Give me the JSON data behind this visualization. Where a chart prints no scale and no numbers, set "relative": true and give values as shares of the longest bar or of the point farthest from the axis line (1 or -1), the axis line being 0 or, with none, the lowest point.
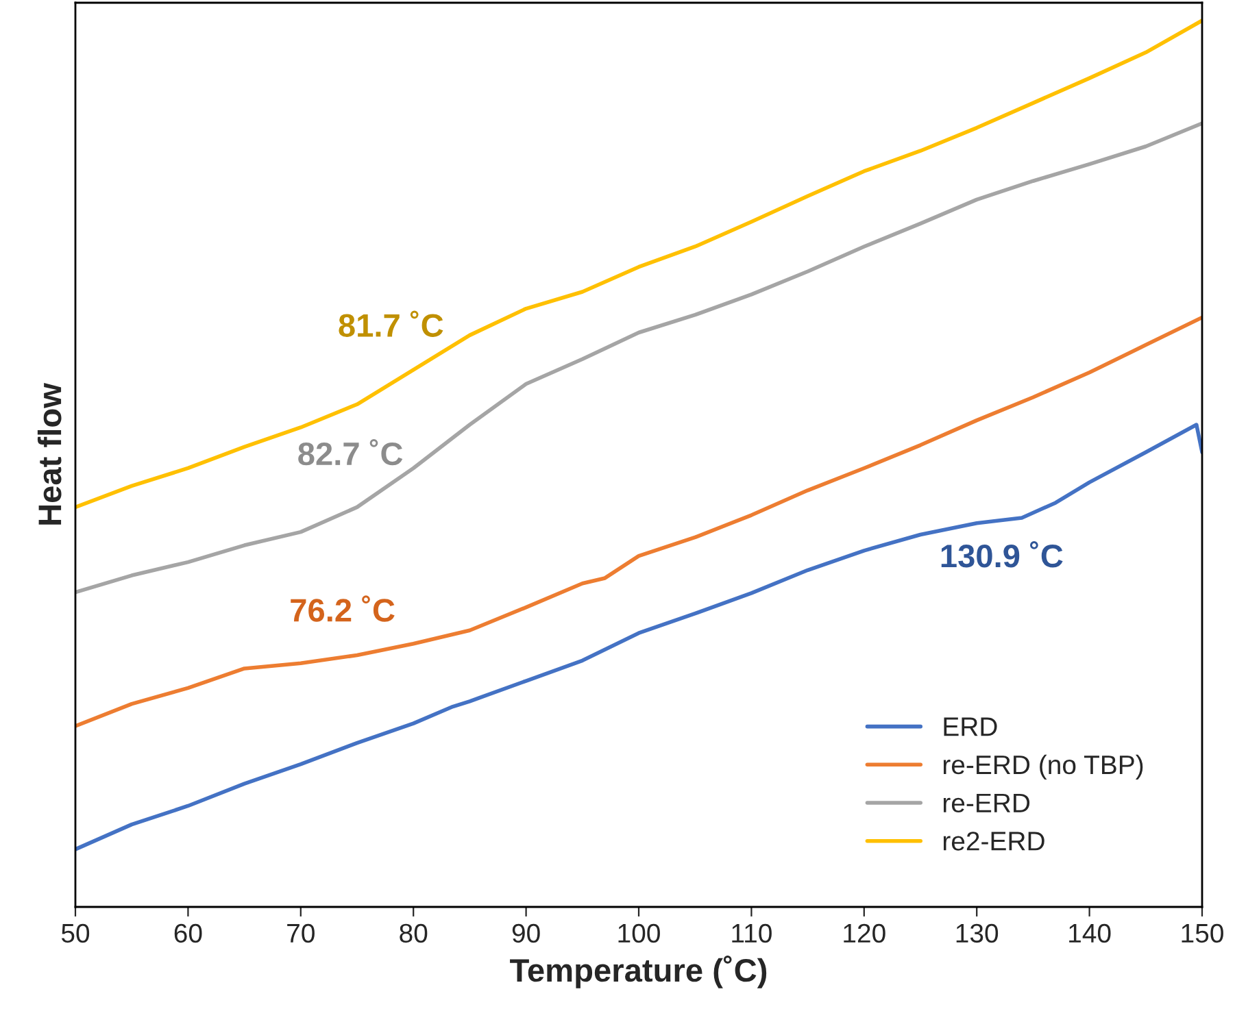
{
  "chart_data": {
    "type": "line",
    "relative": true,
    "xlabel": "Temperature (˚C)",
    "ylabel": "Heat flow",
    "xlim": [
      50,
      150
    ],
    "xticks": [
      50,
      60,
      70,
      80,
      90,
      100,
      110,
      120,
      130,
      140,
      150
    ],
    "grid": false,
    "legend": "bottom right",
    "marker": "none",
    "line_style": "solid",
    "series": [
      {
        "name": "ERD",
        "color": "#4472c4",
        "x": [
          50,
          55,
          60,
          65,
          70,
          75,
          80,
          83.5,
          85,
          90,
          95,
          100,
          105,
          110,
          115,
          120,
          125,
          130,
          134,
          137,
          140,
          145,
          149.5,
          150
        ],
        "values": [
          0.065,
          0.093,
          0.114,
          0.139,
          0.161,
          0.185,
          0.207,
          0.226,
          0.232,
          0.255,
          0.278,
          0.309,
          0.331,
          0.354,
          0.38,
          0.402,
          0.42,
          0.433,
          0.439,
          0.456,
          0.479,
          0.513,
          0.544,
          0.513
        ]
      },
      {
        "name": "re-ERD (no TBP)",
        "color": "#ed7d31",
        "x": [
          50,
          55,
          60,
          65,
          70,
          75,
          80,
          85,
          90,
          95,
          97,
          100,
          105,
          110,
          115,
          120,
          125,
          130,
          135,
          140,
          145,
          150
        ],
        "values": [
          0.204,
          0.229,
          0.247,
          0.269,
          0.275,
          0.284,
          0.297,
          0.312,
          0.338,
          0.365,
          0.371,
          0.396,
          0.417,
          0.442,
          0.47,
          0.495,
          0.521,
          0.549,
          0.575,
          0.603,
          0.634,
          0.665
        ]
      },
      {
        "name": "re-ERD",
        "color": "#a5a5a5",
        "x": [
          50,
          55,
          60,
          65,
          70,
          75,
          80,
          85,
          90,
          95,
          100,
          105,
          110,
          115,
          120,
          125,
          130,
          135,
          140,
          145,
          150
        ],
        "values": [
          0.355,
          0.374,
          0.389,
          0.408,
          0.423,
          0.451,
          0.495,
          0.544,
          0.59,
          0.618,
          0.648,
          0.668,
          0.691,
          0.717,
          0.745,
          0.771,
          0.798,
          0.819,
          0.838,
          0.858,
          0.884
        ]
      },
      {
        "name": "re2-ERD",
        "color": "#ffc000",
        "x": [
          50,
          55,
          60,
          65,
          70,
          75,
          80,
          85,
          90,
          95,
          100,
          105,
          110,
          115,
          120,
          125,
          130,
          135,
          140,
          145,
          150
        ],
        "values": [
          0.451,
          0.475,
          0.495,
          0.519,
          0.541,
          0.567,
          0.606,
          0.645,
          0.675,
          0.694,
          0.722,
          0.745,
          0.773,
          0.802,
          0.83,
          0.853,
          0.879,
          0.907,
          0.935,
          0.964,
          1
        ]
      }
    ],
    "annotations": [
      "81.7 ˚C",
      "82.7 ˚C",
      "76.2 ˚C",
      "130.9 ˚C"
    ]
  }
}
